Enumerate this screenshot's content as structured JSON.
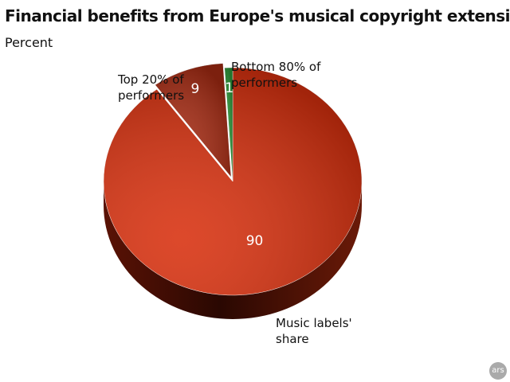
{
  "chart_data": {
    "type": "pie",
    "title": "Financial benefits from Europe's musical copyright extension",
    "subtitle": "Percent",
    "categories": [
      "Music labels' share",
      "Top 20% of performers",
      "Bottom 80% of performers"
    ],
    "values": [
      90,
      9,
      1
    ],
    "colors": [
      "#d8300e",
      "#a52a12",
      "#2e9a3a"
    ],
    "logo": "ars"
  }
}
